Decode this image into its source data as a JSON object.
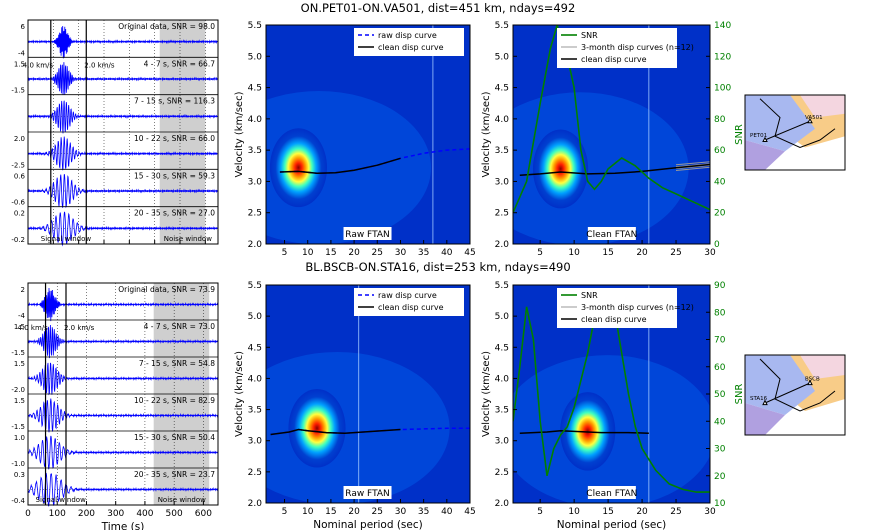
{
  "colors": {
    "blue": "#0000ff",
    "snr_green": "#008000",
    "grey_disp": "#999999",
    "shade": "#cfcfcf"
  },
  "chart_data": [
    {
      "type": "seismogram",
      "title": "ON.PET01-ON.VA501, dist=451 km, ndays=492",
      "xlim": [
        0,
        750
      ],
      "xticks": [
        0,
        100,
        200,
        300,
        400,
        500,
        600,
        700
      ],
      "show_xticklabels": false,
      "xlabel": "",
      "rows": [
        {
          "label": "Original data, SNR = 98.0",
          "ticks": [
            "6",
            "-4"
          ]
        },
        {
          "label": "4 - 7 s, SNR = 66.7",
          "ticks": [
            "1.5",
            "-1.5"
          ]
        },
        {
          "label": "7 - 15 s, SNR = 116.3",
          "ticks": [
            "",
            ""
          ]
        },
        {
          "label": "10 - 22 s, SNR = 66.0",
          "ticks": [
            "2.0",
            "-2.5"
          ]
        },
        {
          "label": "15 - 30 s, SNR = 59.3",
          "ticks": [
            "0.6",
            "-0.6"
          ]
        },
        {
          "label": "20 - 35 s, SNR = 27.0",
          "ticks": [
            "0.2",
            "-0.2"
          ]
        }
      ],
      "signal_window": [
        90,
        230
      ],
      "noise_window": [
        520,
        700
      ],
      "velocity_labels": [
        "4.0 km/s",
        "2.0 km/s"
      ],
      "window_labels": [
        "Signal window",
        "Noise window"
      ]
    },
    {
      "type": "heatmap",
      "panel_label": "Raw FTAN",
      "xlim": [
        1,
        45
      ],
      "ylim": [
        2.0,
        5.5
      ],
      "xticks": [
        5,
        10,
        15,
        20,
        25,
        30,
        35,
        40,
        45
      ],
      "yticks": [
        2.0,
        2.5,
        3.0,
        3.5,
        4.0,
        4.5,
        5.0,
        5.5
      ],
      "ylabel": "Velocity (km/sec)",
      "xlabel": "",
      "legend": [
        "raw disp curve",
        "clean disp curve"
      ],
      "raw_disp_curve": {
        "x": [
          4,
          8,
          12,
          16,
          20,
          25,
          30,
          35,
          40,
          45
        ],
        "y": [
          3.15,
          3.16,
          3.13,
          3.14,
          3.18,
          3.26,
          3.37,
          3.45,
          3.5,
          3.52
        ]
      },
      "clean_disp_curve": {
        "x": [
          4,
          8,
          12,
          16,
          20,
          25,
          30
        ],
        "y": [
          3.15,
          3.16,
          3.13,
          3.14,
          3.18,
          3.26,
          3.37
        ]
      },
      "max_period_line": 37,
      "hotspot": {
        "x": 8,
        "y": 3.22
      }
    },
    {
      "type": "heatmap",
      "panel_label": "Clean FTAN",
      "xlim": [
        1,
        30
      ],
      "ylim": [
        2.0,
        5.5
      ],
      "xticks": [
        5,
        10,
        15,
        20,
        25,
        30
      ],
      "yticks": [
        2.0,
        2.5,
        3.0,
        3.5,
        4.0,
        4.5,
        5.0,
        5.5
      ],
      "ylabel": "Velocity (km/sec)",
      "xlabel": "",
      "y2label": "SNR",
      "y2lim": [
        0,
        140
      ],
      "y2ticks": [
        0,
        20,
        40,
        60,
        80,
        100,
        120,
        140
      ],
      "legend": [
        "SNR",
        "3-month disp curves (n=12)",
        "clean disp curve"
      ],
      "clean_disp_curve": {
        "x": [
          2,
          5,
          8,
          12,
          16,
          20,
          25,
          30
        ],
        "y": [
          3.1,
          3.12,
          3.15,
          3.12,
          3.13,
          3.16,
          3.22,
          3.27
        ]
      },
      "snr": {
        "x": [
          1,
          3,
          5,
          6.5,
          7.5,
          8,
          9,
          10,
          11,
          12,
          13,
          14,
          15,
          17,
          19,
          21,
          23,
          25,
          27,
          30
        ],
        "y": [
          20,
          40,
          90,
          125,
          140,
          130,
          120,
          100,
          60,
          40,
          35,
          40,
          48,
          55,
          50,
          42,
          36,
          32,
          28,
          22
        ]
      },
      "vline": 21,
      "hotspot": {
        "x": 8,
        "y": 3.2
      }
    },
    {
      "type": "seismogram",
      "title": "BL.BSCB-ON.STA16, dist=253 km, ndays=490",
      "xlim": [
        0,
        650
      ],
      "xticks": [
        0,
        100,
        200,
        300,
        400,
        500,
        600
      ],
      "show_xticklabels": true,
      "xlabel": "Time (s)",
      "rows": [
        {
          "label": "Original data, SNR = 73.9",
          "ticks": [
            "2",
            "-4"
          ]
        },
        {
          "label": "4 - 7 s, SNR = 73.0",
          "ticks": [
            "1.5",
            "-1.5"
          ]
        },
        {
          "label": "7 - 15 s, SNR = 54.8",
          "ticks": [
            "1.5",
            "-2.0"
          ]
        },
        {
          "label": "10 - 22 s, SNR = 82.9",
          "ticks": [
            "1.5",
            "-1.5"
          ]
        },
        {
          "label": "15 - 30 s, SNR = 50.4",
          "ticks": [
            "1.0",
            "-1.0"
          ]
        },
        {
          "label": "20 - 35 s, SNR = 23.7",
          "ticks": [
            "0.3",
            "-0.4"
          ]
        }
      ],
      "signal_window": [
        60,
        130
      ],
      "noise_window": [
        430,
        620
      ],
      "velocity_labels": [
        "4.0 km/s",
        "2.0 km/s"
      ],
      "window_labels": [
        "Signal window",
        "Noise window"
      ]
    },
    {
      "type": "heatmap",
      "panel_label": "Raw FTAN",
      "xlim": [
        1,
        45
      ],
      "ylim": [
        2.0,
        5.5
      ],
      "xticks": [
        5,
        10,
        15,
        20,
        25,
        30,
        35,
        40,
        45
      ],
      "yticks": [
        2.0,
        2.5,
        3.0,
        3.5,
        4.0,
        4.5,
        5.0,
        5.5
      ],
      "ylabel": "Velocity (km/sec)",
      "xlabel": "Nominal period (sec)",
      "legend": [
        "raw disp curve",
        "clean disp curve"
      ],
      "raw_disp_curve": {
        "x": [
          2,
          4,
          6,
          8,
          10,
          14,
          18,
          22,
          26,
          30,
          35,
          40,
          45
        ],
        "y": [
          3.1,
          3.12,
          3.14,
          3.18,
          3.16,
          3.13,
          3.12,
          3.14,
          3.16,
          3.18,
          3.19,
          3.2,
          3.2
        ]
      },
      "clean_disp_curve": {
        "x": [
          2,
          4,
          6,
          8,
          10,
          14,
          18,
          22,
          26,
          30
        ],
        "y": [
          3.1,
          3.12,
          3.14,
          3.18,
          3.16,
          3.13,
          3.12,
          3.14,
          3.16,
          3.18
        ]
      },
      "max_period_line": 21,
      "hotspot": {
        "x": 12,
        "y": 3.2
      }
    },
    {
      "type": "heatmap",
      "panel_label": "Clean FTAN",
      "xlim": [
        1,
        30
      ],
      "ylim": [
        2.0,
        5.5
      ],
      "xticks": [
        5,
        10,
        15,
        20,
        25,
        30
      ],
      "yticks": [
        2.0,
        2.5,
        3.0,
        3.5,
        4.0,
        4.5,
        5.0,
        5.5
      ],
      "ylabel": "Velocity (km/sec)",
      "xlabel": "Nominal period (sec)",
      "y2label": "SNR",
      "y2lim": [
        10,
        90
      ],
      "y2ticks": [
        10,
        20,
        30,
        40,
        50,
        60,
        70,
        80,
        90
      ],
      "legend": [
        "SNR",
        "3-month disp curves (n=12)",
        "clean disp curve"
      ],
      "clean_disp_curve": {
        "x": [
          2,
          4,
          6,
          8,
          10,
          12,
          14,
          16,
          18,
          21
        ],
        "y": [
          3.12,
          3.13,
          3.14,
          3.16,
          3.15,
          3.14,
          3.13,
          3.13,
          3.13,
          3.12
        ]
      },
      "snr": {
        "x": [
          1,
          2,
          3,
          4,
          5,
          6,
          7,
          8,
          9,
          10,
          11,
          12,
          13,
          14,
          15,
          16,
          17,
          18,
          19,
          20,
          22,
          24,
          26,
          28,
          30
        ],
        "y": [
          40,
          60,
          82,
          70,
          40,
          20,
          30,
          35,
          38,
          45,
          55,
          65,
          78,
          88,
          88,
          80,
          65,
          50,
          38,
          30,
          22,
          17,
          15,
          14,
          14
        ]
      },
      "vline": 21,
      "hotspot": {
        "x": 12,
        "y": 3.15
      }
    }
  ],
  "maps": [
    {
      "labels": [
        "VA501",
        "PET01"
      ]
    },
    {
      "labels": [
        "BSCB",
        "STA16"
      ]
    }
  ]
}
